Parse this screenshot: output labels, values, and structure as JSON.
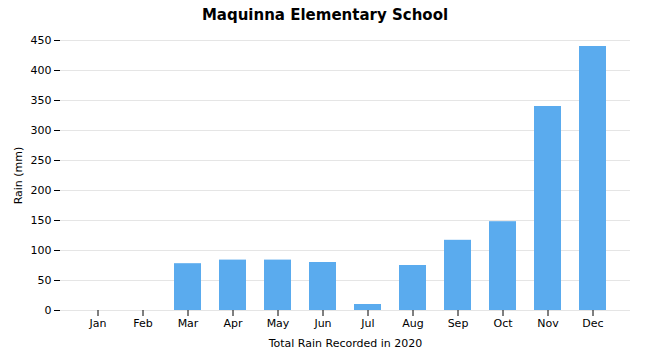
{
  "chart_data": {
    "type": "bar",
    "title": "Maquinna Elementary School",
    "xlabel": "Total Rain Recorded in 2020",
    "ylabel": "Rain (mm)",
    "categories": [
      "Jan",
      "Feb",
      "Mar",
      "Apr",
      "May",
      "Jun",
      "Jul",
      "Aug",
      "Sep",
      "Oct",
      "Nov",
      "Dec"
    ],
    "values": [
      0,
      0,
      78,
      84,
      84,
      80,
      10,
      75,
      117,
      148,
      340,
      440
    ],
    "color": "#5aabee",
    "ylim": [
      0,
      450
    ],
    "yticks": [
      0,
      50,
      100,
      150,
      200,
      250,
      300,
      350,
      400,
      450
    ],
    "grid": true
  }
}
